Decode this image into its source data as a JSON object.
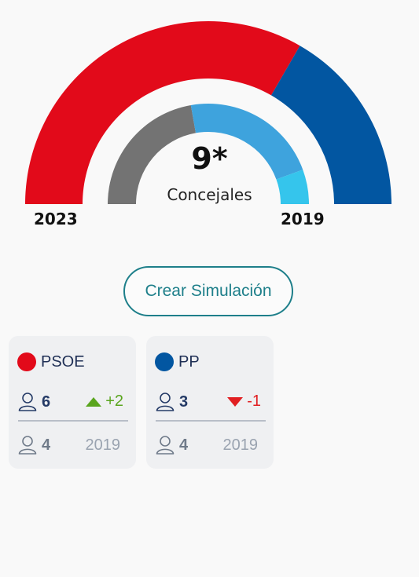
{
  "chart_data": {
    "type": "pie",
    "title": "9*",
    "subtitle": "Concejales",
    "outer_ring": {
      "label": "2023",
      "slices": [
        {
          "party": "PSOE",
          "seats": 6,
          "color": "#e20a1a"
        },
        {
          "party": "PP",
          "seats": 3,
          "color": "#0256a1"
        }
      ]
    },
    "inner_ring": {
      "label": "2019",
      "slices": [
        {
          "party": "",
          "seats": 4,
          "color": "#737373"
        },
        {
          "party": "PP",
          "seats": 4,
          "color": "#3ea3dd"
        },
        {
          "party": "",
          "seats": 1,
          "color": "#35c5ec"
        }
      ]
    }
  },
  "button": {
    "label": "Crear Simulación"
  },
  "cards": [
    {
      "party": "PSOE",
      "color": "#e20a1a",
      "seats": "6",
      "diff": "+2",
      "direction": "up",
      "prev_seats": "4",
      "prev_year": "2019"
    },
    {
      "party": "PP",
      "color": "#0256a1",
      "seats": "3",
      "diff": "-1",
      "direction": "down",
      "prev_seats": "4",
      "prev_year": "2019"
    }
  ],
  "colors": {
    "accent": "#1e7f8a",
    "up": "#5aa51e",
    "down": "#e11f22"
  },
  "icons": {
    "person": "person-outline-icon",
    "up": "triangle-up-icon",
    "down": "triangle-down-icon"
  }
}
